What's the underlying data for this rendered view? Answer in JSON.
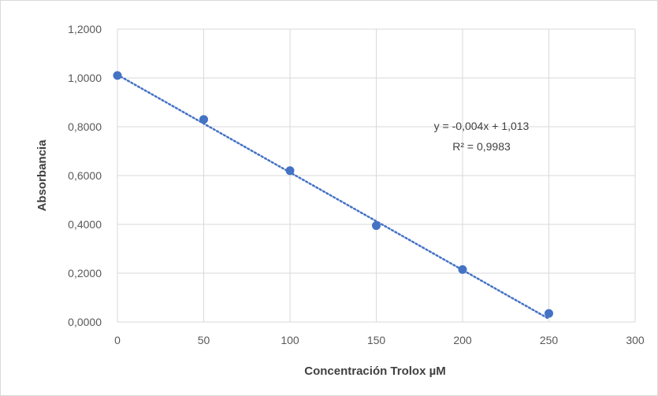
{
  "chart_data": {
    "type": "scatter",
    "title": "",
    "xlabel": "Concentración Trolox µM",
    "ylabel": "Absorbancia",
    "xlim": [
      0,
      300
    ],
    "ylim": [
      0,
      1.2
    ],
    "x_ticks": [
      "0",
      "50",
      "100",
      "150",
      "200",
      "250",
      "300"
    ],
    "y_ticks": [
      "0,0000",
      "0,2000",
      "0,4000",
      "0,6000",
      "0,8000",
      "1,0000",
      "1,2000"
    ],
    "grid": true,
    "series": [
      {
        "x": [
          0,
          50,
          100,
          150,
          200,
          250
        ],
        "y": [
          1.01,
          0.83,
          0.62,
          0.395,
          0.215,
          0.035
        ],
        "color": "#4472c4",
        "trendline": {
          "type": "linear",
          "slope": -0.004,
          "intercept": 1.013,
          "style": "dotted"
        }
      }
    ],
    "annotations": {
      "equation": "y = -0,004x + 1,013",
      "r_squared": "R² = 0,9983"
    }
  }
}
